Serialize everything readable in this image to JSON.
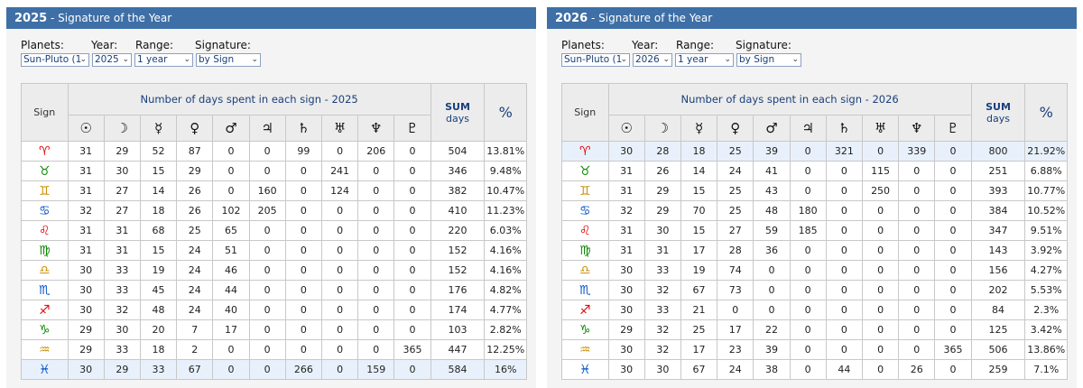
{
  "planets": [
    "☉",
    "☽",
    "☿",
    "♀",
    "♂",
    "♃",
    "♄",
    "♅",
    "♆",
    "♇"
  ],
  "signs": [
    "♈",
    "♉",
    "♊",
    "♋",
    "♌",
    "♍",
    "♎",
    "♏",
    "♐",
    "♑",
    "♒",
    "♓"
  ],
  "sign_colors": [
    "#e00000",
    "#0a8a00",
    "#c98e00",
    "#0050c8",
    "#e00000",
    "#0a8a00",
    "#c98e00",
    "#0050c8",
    "#e00000",
    "#0a8a00",
    "#c98e00",
    "#0050c8"
  ],
  "panels": [
    {
      "title_year": "2025",
      "title_rest": " - Signature of the Year",
      "labels": {
        "planets": "Planets:",
        "year": "Year:",
        "range": "Range:",
        "signature": "Signature:"
      },
      "selects": {
        "planets": "Sun-Pluto (1",
        "year": "2025",
        "range": "1 year",
        "signature": "by Sign"
      },
      "table_title": "Number of days spent in each sign - 2025",
      "sign_header": "Sign",
      "sum_header_1": "SUM",
      "sum_header_2": "days",
      "pct_header": "%",
      "highlight_row": 11,
      "bold_pct_row": 11,
      "rows": [
        {
          "vals": [
            "31",
            "29",
            "52",
            "87",
            "0",
            "0",
            "99",
            "0",
            "206",
            "0"
          ],
          "sum": "504",
          "pct": "13.81%"
        },
        {
          "vals": [
            "31",
            "30",
            "15",
            "29",
            "0",
            "0",
            "0",
            "241",
            "0",
            "0"
          ],
          "sum": "346",
          "pct": "9.48%"
        },
        {
          "vals": [
            "31",
            "27",
            "14",
            "26",
            "0",
            "160",
            "0",
            "124",
            "0",
            "0"
          ],
          "sum": "382",
          "pct": "10.47%"
        },
        {
          "vals": [
            "32",
            "27",
            "18",
            "26",
            "102",
            "205",
            "0",
            "0",
            "0",
            "0"
          ],
          "sum": "410",
          "pct": "11.23%"
        },
        {
          "vals": [
            "31",
            "31",
            "68",
            "25",
            "65",
            "0",
            "0",
            "0",
            "0",
            "0"
          ],
          "sum": "220",
          "pct": "6.03%"
        },
        {
          "vals": [
            "31",
            "31",
            "15",
            "24",
            "51",
            "0",
            "0",
            "0",
            "0",
            "0"
          ],
          "sum": "152",
          "pct": "4.16%"
        },
        {
          "vals": [
            "30",
            "33",
            "19",
            "24",
            "46",
            "0",
            "0",
            "0",
            "0",
            "0"
          ],
          "sum": "152",
          "pct": "4.16%"
        },
        {
          "vals": [
            "30",
            "33",
            "45",
            "24",
            "44",
            "0",
            "0",
            "0",
            "0",
            "0"
          ],
          "sum": "176",
          "pct": "4.82%"
        },
        {
          "vals": [
            "30",
            "32",
            "48",
            "24",
            "40",
            "0",
            "0",
            "0",
            "0",
            "0"
          ],
          "sum": "174",
          "pct": "4.77%"
        },
        {
          "vals": [
            "29",
            "30",
            "20",
            "7",
            "17",
            "0",
            "0",
            "0",
            "0",
            "0"
          ],
          "sum": "103",
          "pct": "2.82%"
        },
        {
          "vals": [
            "29",
            "33",
            "18",
            "2",
            "0",
            "0",
            "0",
            "0",
            "0",
            "365"
          ],
          "sum": "447",
          "pct": "12.25%"
        },
        {
          "vals": [
            "30",
            "29",
            "33",
            "67",
            "0",
            "0",
            "266",
            "0",
            "159",
            "0"
          ],
          "sum": "584",
          "pct": "16%"
        }
      ]
    },
    {
      "title_year": "2026",
      "title_rest": " - Signature of the Year",
      "labels": {
        "planets": "Planets:",
        "year": "Year:",
        "range": "Range:",
        "signature": "Signature:"
      },
      "selects": {
        "planets": "Sun-Pluto (1",
        "year": "2026",
        "range": "1 year",
        "signature": "by Sign"
      },
      "table_title": "Number of days spent in each sign - 2026",
      "sign_header": "Sign",
      "sum_header_1": "SUM",
      "sum_header_2": "days",
      "pct_header": "%",
      "highlight_row": 0,
      "bold_pct_row": 0,
      "rows": [
        {
          "vals": [
            "30",
            "28",
            "18",
            "25",
            "39",
            "0",
            "321",
            "0",
            "339",
            "0"
          ],
          "sum": "800",
          "pct": "21.92%"
        },
        {
          "vals": [
            "31",
            "26",
            "14",
            "24",
            "41",
            "0",
            "0",
            "115",
            "0",
            "0"
          ],
          "sum": "251",
          "pct": "6.88%"
        },
        {
          "vals": [
            "31",
            "29",
            "15",
            "25",
            "43",
            "0",
            "0",
            "250",
            "0",
            "0"
          ],
          "sum": "393",
          "pct": "10.77%"
        },
        {
          "vals": [
            "32",
            "29",
            "70",
            "25",
            "48",
            "180",
            "0",
            "0",
            "0",
            "0"
          ],
          "sum": "384",
          "pct": "10.52%"
        },
        {
          "vals": [
            "31",
            "30",
            "15",
            "27",
            "59",
            "185",
            "0",
            "0",
            "0",
            "0"
          ],
          "sum": "347",
          "pct": "9.51%"
        },
        {
          "vals": [
            "31",
            "31",
            "17",
            "28",
            "36",
            "0",
            "0",
            "0",
            "0",
            "0"
          ],
          "sum": "143",
          "pct": "3.92%"
        },
        {
          "vals": [
            "30",
            "33",
            "19",
            "74",
            "0",
            "0",
            "0",
            "0",
            "0",
            "0"
          ],
          "sum": "156",
          "pct": "4.27%"
        },
        {
          "vals": [
            "30",
            "32",
            "67",
            "73",
            "0",
            "0",
            "0",
            "0",
            "0",
            "0"
          ],
          "sum": "202",
          "pct": "5.53%"
        },
        {
          "vals": [
            "30",
            "33",
            "21",
            "0",
            "0",
            "0",
            "0",
            "0",
            "0",
            "0"
          ],
          "sum": "84",
          "pct": "2.3%"
        },
        {
          "vals": [
            "29",
            "32",
            "25",
            "17",
            "22",
            "0",
            "0",
            "0",
            "0",
            "0"
          ],
          "sum": "125",
          "pct": "3.42%"
        },
        {
          "vals": [
            "30",
            "32",
            "17",
            "23",
            "39",
            "0",
            "0",
            "0",
            "0",
            "365"
          ],
          "sum": "506",
          "pct": "13.86%"
        },
        {
          "vals": [
            "30",
            "30",
            "67",
            "24",
            "38",
            "0",
            "44",
            "0",
            "26",
            "0"
          ],
          "sum": "259",
          "pct": "7.1%"
        }
      ]
    }
  ]
}
